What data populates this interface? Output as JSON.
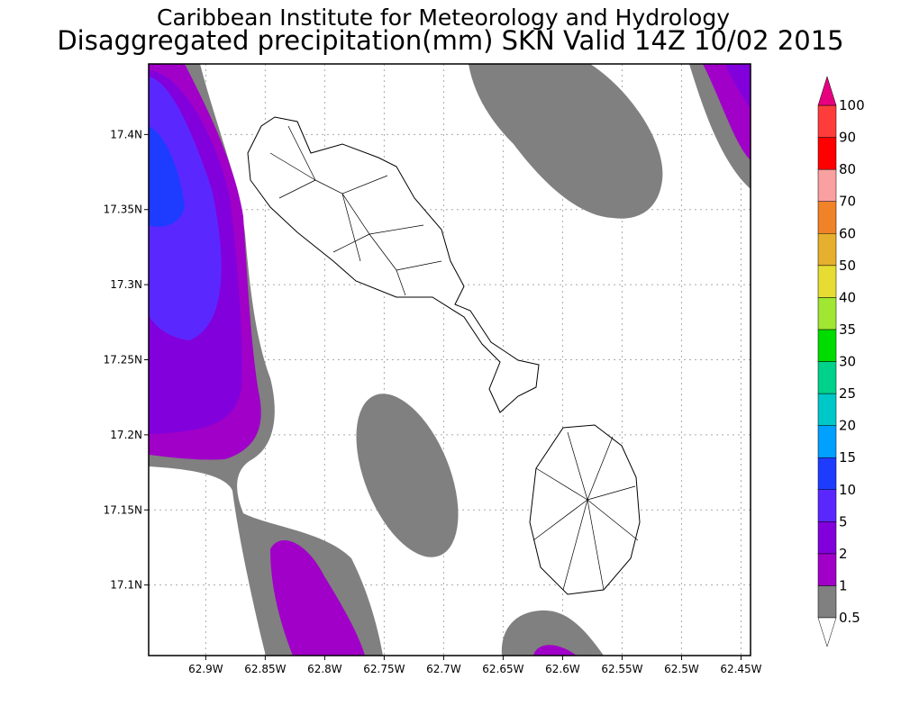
{
  "header": {
    "title": "Caribbean Institute for Meteorology and Hydrology",
    "subtitle": "Disaggregated precipitation(mm) SKN Valid 14Z 10/02 2015"
  },
  "map": {
    "xlim": [
      -62.948,
      -62.442
    ],
    "ylim": [
      17.053,
      17.447
    ],
    "xticks": [
      {
        "value": -62.9,
        "label": "62.9W"
      },
      {
        "value": -62.85,
        "label": "62.85W"
      },
      {
        "value": -62.8,
        "label": "62.8W"
      },
      {
        "value": -62.75,
        "label": "62.75W"
      },
      {
        "value": -62.7,
        "label": "62.7W"
      },
      {
        "value": -62.65,
        "label": "62.65W"
      },
      {
        "value": -62.6,
        "label": "62.6W"
      },
      {
        "value": -62.55,
        "label": "62.55W"
      },
      {
        "value": -62.5,
        "label": "62.5W"
      },
      {
        "value": -62.45,
        "label": "62.45W"
      }
    ],
    "yticks": [
      {
        "value": 17.1,
        "label": "17.1N"
      },
      {
        "value": 17.15,
        "label": "17.15N"
      },
      {
        "value": 17.2,
        "label": "17.2N"
      },
      {
        "value": 17.25,
        "label": "17.25N"
      },
      {
        "value": 17.3,
        "label": "17.3N"
      },
      {
        "value": 17.35,
        "label": "17.35N"
      },
      {
        "value": 17.4,
        "label": "17.4N"
      }
    ],
    "grid": true
  },
  "colorbar": {
    "levels": [
      0.5,
      1,
      2,
      5,
      10,
      15,
      20,
      25,
      30,
      35,
      40,
      50,
      60,
      70,
      80,
      90,
      100
    ],
    "colors": [
      "#808080",
      "#a000c8",
      "#8200dc",
      "#5a28ff",
      "#1e3cff",
      "#00a0ff",
      "#00c8c8",
      "#00d28c",
      "#00dc00",
      "#a0e632",
      "#e6dc32",
      "#e6af2d",
      "#f08228",
      "#faa0a0",
      "#ff0000",
      "#ff3c3c"
    ],
    "under_color": "#ffffff",
    "over_color": "#e6007f"
  }
}
